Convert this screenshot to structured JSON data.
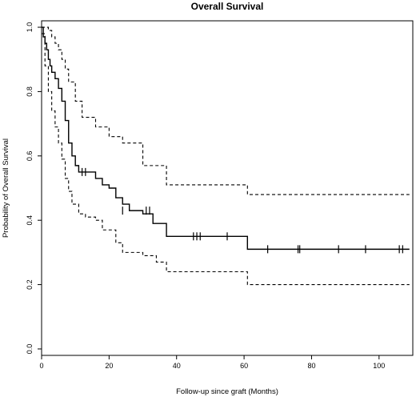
{
  "chart_data": {
    "type": "line",
    "title": "Overall Survival",
    "xlabel": "Follow-up since graft (Months)",
    "ylabel": "Probability of Overall Survival",
    "xlim": [
      0,
      110
    ],
    "ylim": [
      -0.02,
      1.02
    ],
    "xticks": [
      0,
      20,
      40,
      60,
      80,
      100
    ],
    "yticks": [
      0.0,
      0.2,
      0.4,
      0.6,
      0.8,
      1.0
    ],
    "grid": false,
    "legend": "none",
    "series": [
      {
        "role": "estimate",
        "style": "solid",
        "step": true,
        "x": [
          0,
          0.5,
          1,
          1.5,
          2,
          2.5,
          3,
          4,
          5,
          6,
          7,
          8,
          9,
          10,
          11,
          16,
          18,
          20,
          22,
          24,
          26,
          30,
          33,
          37,
          61,
          109
        ],
        "y": [
          1.0,
          0.97,
          0.95,
          0.93,
          0.9,
          0.88,
          0.86,
          0.84,
          0.81,
          0.77,
          0.71,
          0.64,
          0.6,
          0.57,
          0.55,
          0.53,
          0.51,
          0.5,
          0.47,
          0.45,
          0.43,
          0.42,
          0.39,
          0.35,
          0.31,
          0.31
        ]
      },
      {
        "role": "upper-ci",
        "style": "dashed",
        "step": true,
        "x": [
          0,
          1,
          2,
          3,
          4,
          5,
          6,
          7,
          8,
          10,
          12,
          16,
          20,
          24,
          30,
          37,
          61,
          109
        ],
        "y": [
          1.0,
          1.0,
          0.99,
          0.97,
          0.95,
          0.93,
          0.9,
          0.87,
          0.83,
          0.77,
          0.72,
          0.69,
          0.66,
          0.64,
          0.57,
          0.51,
          0.48,
          0.48
        ]
      },
      {
        "role": "lower-ci",
        "style": "dashed",
        "step": true,
        "x": [
          0,
          1,
          2,
          3,
          4,
          5,
          6,
          7,
          8,
          9,
          11,
          13,
          16,
          18,
          22,
          24,
          30,
          34,
          37,
          61,
          109
        ],
        "y": [
          0.98,
          0.88,
          0.8,
          0.74,
          0.69,
          0.64,
          0.59,
          0.53,
          0.49,
          0.45,
          0.42,
          0.41,
          0.4,
          0.37,
          0.33,
          0.3,
          0.29,
          0.27,
          0.24,
          0.2,
          0.2
        ]
      }
    ],
    "censor_marks": {
      "x": [
        12,
        13,
        24,
        31,
        32,
        45,
        46,
        47,
        55,
        67,
        76,
        76.5,
        88,
        96,
        106,
        107
      ],
      "y": [
        0.55,
        0.55,
        0.43,
        0.43,
        0.43,
        0.35,
        0.35,
        0.35,
        0.35,
        0.31,
        0.31,
        0.31,
        0.31,
        0.31,
        0.31,
        0.31
      ]
    }
  }
}
